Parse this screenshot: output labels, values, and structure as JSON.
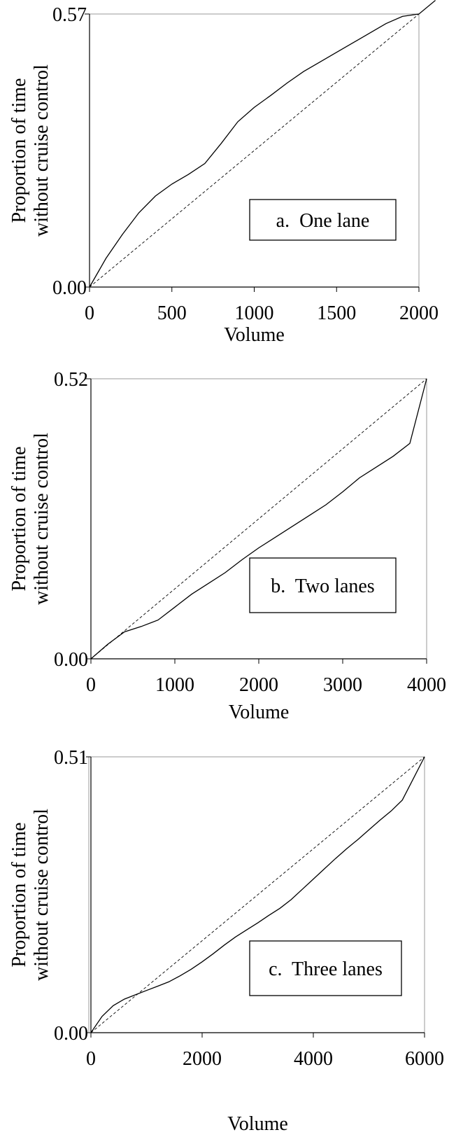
{
  "chart_data": [
    {
      "type": "line",
      "title": "",
      "annotation": "a.  One lane",
      "xlabel": "Volume",
      "ylabel": [
        "Proportion of time",
        "without cruise control"
      ],
      "xlim": [
        0,
        2000
      ],
      "ylim": [
        0,
        0.57
      ],
      "x_ticks": [
        "0",
        "500",
        "1000",
        "1500",
        "2000"
      ],
      "y_ticks": [
        "0.00",
        "0.57"
      ],
      "grid": false,
      "series": [
        {
          "style": "solid",
          "x": [
            0,
            50,
            100,
            200,
            300,
            400,
            500,
            600,
            700,
            800,
            900,
            1000,
            1100,
            1200,
            1300,
            1400,
            1500,
            1600,
            1700,
            1800,
            1900,
            2000
          ],
          "y": [
            0,
            0.03,
            0.06,
            0.11,
            0.155,
            0.19,
            0.215,
            0.235,
            0.258,
            0.3,
            0.345,
            0.375,
            0.4,
            0.426,
            0.45,
            0.47,
            0.49,
            0.51,
            0.53,
            0.55,
            0.565,
            0.57
          ]
        },
        {
          "style": "dashed",
          "x": [
            0,
            2000
          ],
          "y": [
            0,
            0.57
          ]
        }
      ],
      "extension_line_x_max": 2100
    },
    {
      "type": "line",
      "title": "",
      "annotation": "b.  Two lanes",
      "xlabel": "Volume",
      "ylabel": [
        "Proportion of time",
        "without cruise control"
      ],
      "xlim": [
        0,
        4000
      ],
      "ylim": [
        0,
        0.52
      ],
      "x_ticks": [
        "0",
        "1000",
        "2000",
        "3000",
        "4000"
      ],
      "y_ticks": [
        "0.00",
        "0.52"
      ],
      "grid": false,
      "series": [
        {
          "style": "solid",
          "x": [
            0,
            200,
            400,
            600,
            800,
            1000,
            1200,
            1400,
            1600,
            1800,
            2000,
            2200,
            2400,
            2600,
            2800,
            3000,
            3200,
            3400,
            3600,
            3800,
            4000
          ],
          "y": [
            0,
            0.027,
            0.05,
            0.06,
            0.072,
            0.096,
            0.12,
            0.14,
            0.16,
            0.184,
            0.206,
            0.226,
            0.246,
            0.266,
            0.286,
            0.31,
            0.336,
            0.356,
            0.376,
            0.4,
            0.52
          ]
        },
        {
          "style": "dashed",
          "x": [
            0,
            4000
          ],
          "y": [
            0,
            0.52
          ]
        }
      ]
    },
    {
      "type": "line",
      "title": "",
      "annotation": "c.  Three lanes",
      "xlabel": "Volume",
      "ylabel": [
        "Proportion of time",
        "without cruise control"
      ],
      "xlim": [
        0,
        6000
      ],
      "ylim": [
        0,
        0.51
      ],
      "x_ticks": [
        "0",
        "2000",
        "4000",
        "6000"
      ],
      "y_ticks": [
        "0.00",
        "0.51"
      ],
      "grid": false,
      "series": [
        {
          "style": "solid",
          "x": [
            0,
            200,
            400,
            600,
            800,
            1000,
            1200,
            1400,
            1600,
            1800,
            2000,
            2200,
            2400,
            2600,
            2800,
            3000,
            3200,
            3400,
            3600,
            3800,
            4000,
            4200,
            4400,
            4600,
            4800,
            5000,
            5200,
            5400,
            5600,
            5800,
            6000
          ],
          "y": [
            0,
            0.03,
            0.05,
            0.062,
            0.07,
            0.078,
            0.086,
            0.094,
            0.105,
            0.117,
            0.131,
            0.146,
            0.162,
            0.177,
            0.19,
            0.203,
            0.217,
            0.23,
            0.246,
            0.265,
            0.284,
            0.303,
            0.322,
            0.34,
            0.357,
            0.375,
            0.393,
            0.41,
            0.43,
            0.47,
            0.51
          ]
        },
        {
          "style": "dashed",
          "x": [
            0,
            6000
          ],
          "y": [
            0,
            0.51
          ]
        }
      ]
    }
  ]
}
